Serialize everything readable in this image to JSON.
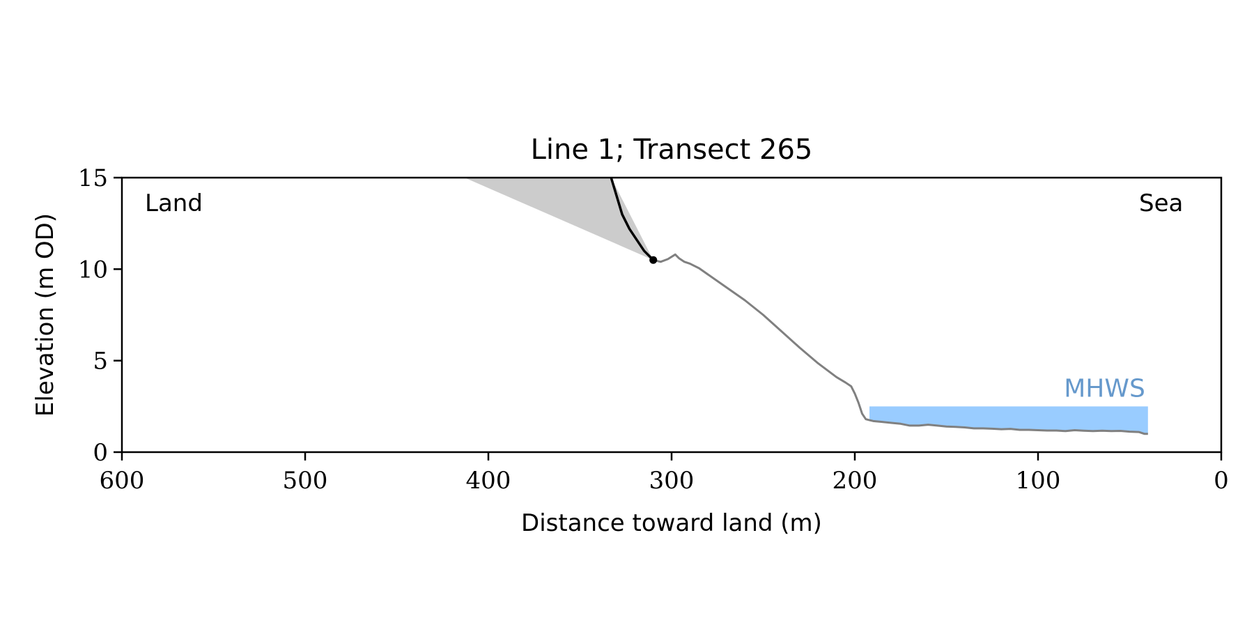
{
  "chart_data": {
    "type": "area",
    "title": "Line 1; Transect 265",
    "xlabel": "Distance toward land (m)",
    "ylabel": "Elevation (m OD)",
    "xlim": [
      600,
      0
    ],
    "ylim": [
      0,
      15
    ],
    "x_ticks": [
      600,
      500,
      400,
      300,
      200,
      100,
      0
    ],
    "x_tick_labels": [
      "600",
      "500",
      "400",
      "300",
      "200",
      "100",
      "0"
    ],
    "y_ticks": [
      0,
      5,
      10,
      15
    ],
    "y_tick_labels": [
      "0",
      "5",
      "10",
      "15"
    ],
    "grid": false,
    "annotations": {
      "land": "Land",
      "sea": "Sea",
      "mhws": "MHWS"
    },
    "colors": {
      "profile": "#808080",
      "cliff": "#000000",
      "shaded": "#cccccc",
      "water": "#99ccff",
      "mhws_text": "#6699cc"
    },
    "series": [
      {
        "type": "line",
        "x": [
          310,
          306,
          302,
          298,
          296,
          293,
          290,
          285,
          280,
          270,
          260,
          250,
          240,
          230,
          220,
          210,
          205,
          202,
          200,
          198,
          196,
          194,
          192,
          190,
          185,
          180,
          175,
          170,
          165,
          160,
          155,
          150,
          145,
          140,
          135,
          130,
          125,
          120,
          115,
          110,
          105,
          100,
          95,
          90,
          85,
          80,
          75,
          70,
          65,
          60,
          55,
          50,
          45,
          42,
          40
        ],
        "y": [
          10.5,
          10.4,
          10.55,
          10.8,
          10.6,
          10.4,
          10.3,
          10.05,
          9.7,
          9.0,
          8.3,
          7.5,
          6.6,
          5.7,
          4.85,
          4.1,
          3.8,
          3.6,
          3.2,
          2.7,
          2.1,
          1.8,
          1.75,
          1.7,
          1.65,
          1.6,
          1.55,
          1.45,
          1.45,
          1.5,
          1.45,
          1.4,
          1.38,
          1.35,
          1.3,
          1.3,
          1.28,
          1.25,
          1.27,
          1.22,
          1.22,
          1.2,
          1.18,
          1.18,
          1.15,
          1.2,
          1.17,
          1.15,
          1.17,
          1.15,
          1.16,
          1.12,
          1.1,
          1.0,
          1.0
        ]
      },
      {
        "type": "line",
        "x": [
          333,
          330,
          327,
          323,
          319,
          315,
          310
        ],
        "y": [
          15,
          14.0,
          13.0,
          12.2,
          11.6,
          11.0,
          10.5
        ]
      },
      {
        "type": "area",
        "x": [
          413,
          333,
          310
        ],
        "y": [
          15,
          15,
          10.5
        ]
      },
      {
        "type": "area",
        "x": [
          192,
          40
        ],
        "y_top": [
          2.5,
          2.5
        ],
        "y_bottom_follows_profile": true
      },
      {
        "type": "scatter",
        "x": [
          310
        ],
        "y": [
          10.5
        ]
      }
    ]
  }
}
